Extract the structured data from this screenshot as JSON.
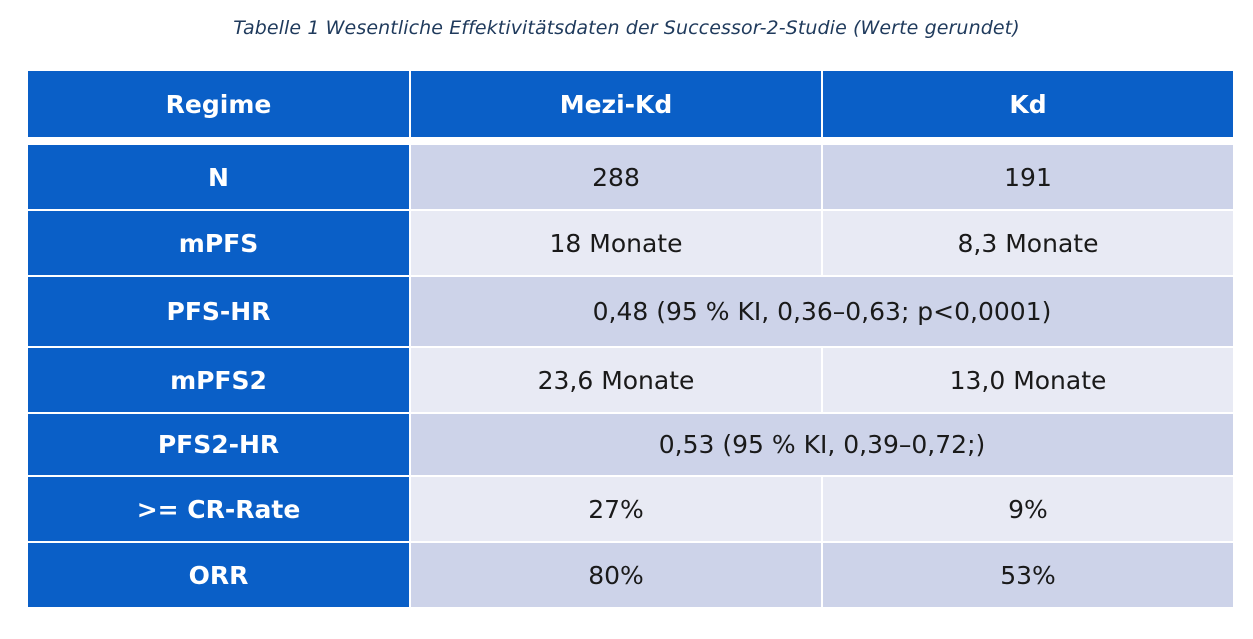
{
  "caption": "Tabelle 1 Wesentliche Effektivitätsdaten der Successor-2-Studie (Werte gerundet)",
  "table": {
    "headers": [
      "Regime",
      "Mezi-Kd",
      "Kd"
    ],
    "rows": [
      {
        "label": "N",
        "mezi_kd": "288",
        "kd": "191"
      },
      {
        "label": "mPFS",
        "mezi_kd": "18 Monate",
        "kd": "8,3 Monate"
      },
      {
        "label": "PFS-HR",
        "combined": "0,48 (95 % KI, 0,36–0,63; p<0,0001)"
      },
      {
        "label": "mPFS2",
        "mezi_kd": "23,6 Monate",
        "kd": "13,0 Monate"
      },
      {
        "label": "PFS2-HR",
        "combined": "0,53 (95 % KI, 0,39–0,72;)"
      },
      {
        "label": ">= CR-Rate",
        "mezi_kd": "27%",
        "kd": "9%"
      },
      {
        "label": "ORR",
        "mezi_kd": "80%",
        "kd": "53%"
      }
    ]
  },
  "colors": {
    "header_bg": "#0a5fc7",
    "row_odd_bg": "#cdd3e9",
    "row_even_bg": "#e8eaf4",
    "caption_text": "#1f3a5c"
  }
}
